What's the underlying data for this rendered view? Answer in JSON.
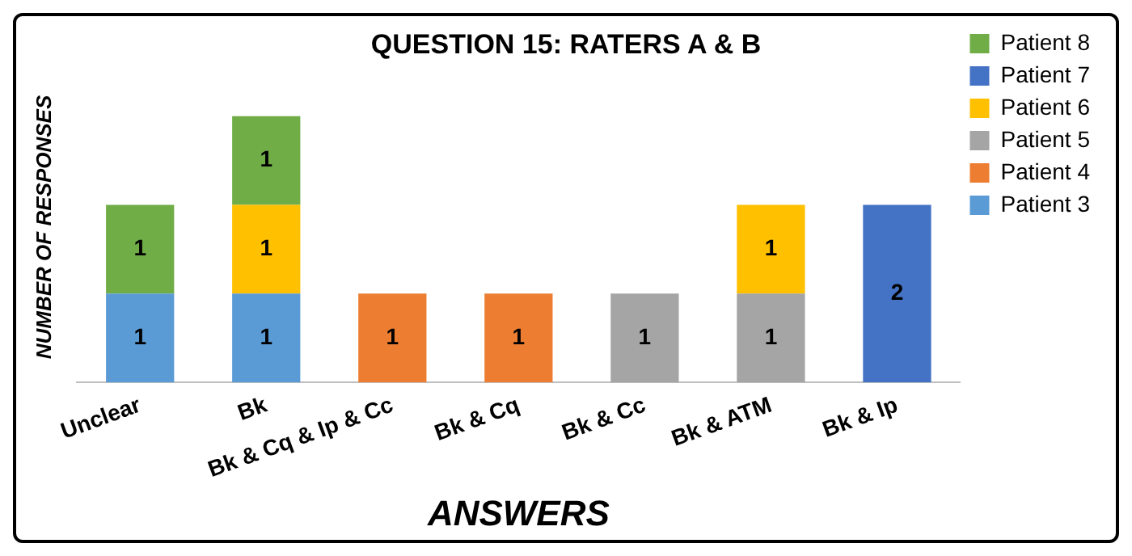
{
  "chart_data": {
    "type": "bar",
    "title": "QUESTION 15: RATERS A & B",
    "xlabel": "ANSWERS",
    "ylabel": "NUMBER OF RESPONSES",
    "categories": [
      "Unclear",
      "Bk",
      "Bk & Cq & Ip & Cc",
      "Bk & Cq",
      "Bk & Cc",
      "Bk & ATM",
      "Bk & Ip"
    ],
    "stacked": true,
    "data_labels": true,
    "legend": "top right",
    "grid": false,
    "series": [
      {
        "name": "Patient 3",
        "color": "#5b9bd5",
        "values": [
          1,
          1,
          null,
          null,
          null,
          null,
          null
        ]
      },
      {
        "name": "Patient 4",
        "color": "#ed7d31",
        "values": [
          null,
          null,
          1,
          1,
          null,
          null,
          null
        ]
      },
      {
        "name": "Patient 5",
        "color": "#a5a5a5",
        "values": [
          null,
          null,
          null,
          null,
          1,
          1,
          null
        ]
      },
      {
        "name": "Patient 6",
        "color": "#ffc000",
        "values": [
          null,
          1,
          null,
          null,
          null,
          1,
          null
        ]
      },
      {
        "name": "Patient 7",
        "color": "#4472c4",
        "values": [
          null,
          null,
          null,
          null,
          null,
          null,
          2
        ]
      },
      {
        "name": "Patient 8",
        "color": "#70ad47",
        "values": [
          1,
          1,
          null,
          null,
          null,
          null,
          null
        ]
      }
    ]
  }
}
